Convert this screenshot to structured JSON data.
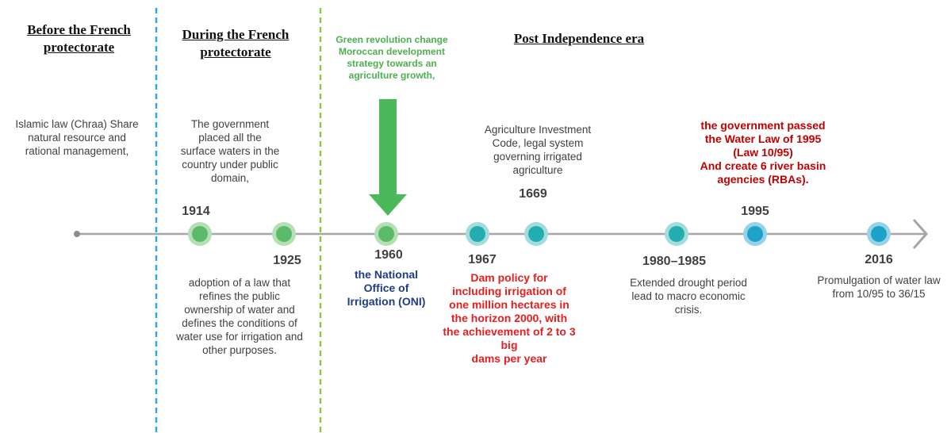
{
  "eras": [
    "Before the French protectorate",
    "During the French protectorate",
    "Post Independence era"
  ],
  "annotation": [
    "Green revolution change",
    "Moroccan development",
    "strategy towards an",
    "agriculture growth,"
  ],
  "events": [
    {
      "lines": [
        "Islamic law (Chraa) Share",
        "natural resource and",
        "rational management,"
      ]
    },
    {
      "year": "1914",
      "lines": [
        "The government",
        "placed all the",
        "surface waters in the",
        "country under public",
        "domain,"
      ]
    },
    {
      "year": "1925",
      "lines": [
        "adoption of a law that",
        "refines the public",
        "ownership of water and",
        "defines the conditions of",
        "water use for irrigation and",
        "other purposes."
      ]
    },
    {
      "year": "1960",
      "lines": [
        "the National",
        "Office of",
        "Irrigation (ONI)"
      ]
    },
    {
      "year": "1967",
      "lines": [
        "Dam policy for",
        "including irrigation of",
        "one million hectares in",
        "the horizon 2000, with",
        "the achievement of 2 to 3",
        "big",
        "dams per year"
      ]
    },
    {
      "year": "1669",
      "lines": [
        "Agriculture Investment",
        "Code, legal system",
        "governing irrigated",
        "agriculture"
      ]
    },
    {
      "year": "1980–1985",
      "lines": [
        "Extended drought period",
        "lead to macro economic",
        "crisis."
      ]
    },
    {
      "year": "1995",
      "lines": [
        "the government passed",
        "the Water Law of 1995",
        "(Law 10/95)",
        "And create 6 river basin",
        "agencies (RBAs)."
      ]
    },
    {
      "year": "2016",
      "lines": [
        "Promulgation of water law",
        "from 10/95 to 36/15"
      ]
    }
  ]
}
